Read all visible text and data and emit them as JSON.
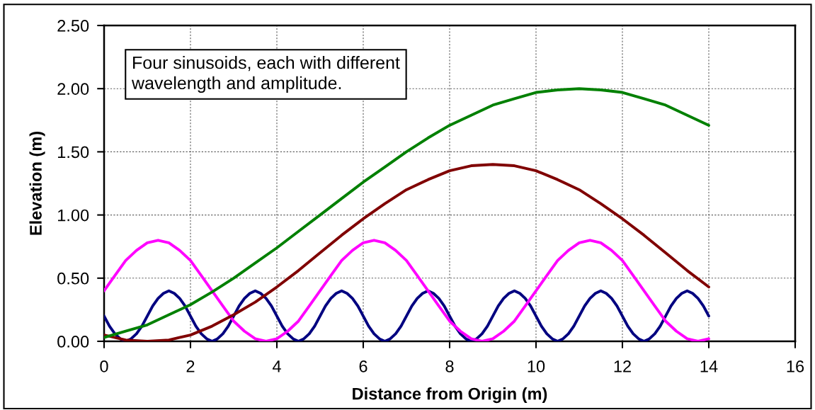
{
  "chart_data": {
    "type": "line",
    "xlabel": "Distance from Origin (m)",
    "ylabel": "Elevation (m)",
    "annotations": [
      "Four sinusoids, each with different\nwavelength and amplitude."
    ],
    "xlim": [
      0,
      16
    ],
    "ylim": [
      0,
      2.5
    ],
    "xticks": [
      0,
      2,
      4,
      6,
      8,
      10,
      12,
      14,
      16
    ],
    "yticks": [
      {
        "value": 0,
        "label": "0.00"
      },
      {
        "value": 0.5,
        "label": "0.50"
      },
      {
        "value": 1,
        "label": "1.00"
      },
      {
        "value": 1.5,
        "label": "1.50"
      },
      {
        "value": 2,
        "label": "2.00"
      },
      {
        "value": 2.5,
        "label": "2.50"
      }
    ],
    "grid": true,
    "line_style": "solid",
    "series": [
      {
        "color": "#000080",
        "x": [
          0,
          0.125,
          0.25,
          0.375,
          0.5,
          0.625,
          0.75,
          0.875,
          1,
          1.125,
          1.25,
          1.375,
          1.5,
          1.625,
          1.75,
          1.875,
          2,
          2.125,
          2.25,
          2.375,
          2.5,
          2.625,
          2.75,
          2.875,
          3,
          3.125,
          3.25,
          3.375,
          3.5,
          3.625,
          3.75,
          3.875,
          4,
          4.125,
          4.25,
          4.375,
          4.5,
          4.625,
          4.75,
          4.875,
          5,
          5.125,
          5.25,
          5.375,
          5.5,
          5.625,
          5.75,
          5.875,
          6,
          6.125,
          6.25,
          6.375,
          6.5,
          6.625,
          6.75,
          6.875,
          7,
          7.125,
          7.25,
          7.375,
          7.5,
          7.625,
          7.75,
          7.875,
          8,
          8.125,
          8.25,
          8.375,
          8.5,
          8.625,
          8.75,
          8.875,
          9,
          9.125,
          9.25,
          9.375,
          9.5,
          9.625,
          9.75,
          9.875,
          10,
          10.125,
          10.25,
          10.375,
          10.5,
          10.625,
          10.75,
          10.875,
          11,
          11.125,
          11.25,
          11.375,
          11.5,
          11.625,
          11.75,
          11.875,
          12,
          12.125,
          12.25,
          12.375,
          12.5,
          12.625,
          12.75,
          12.875,
          13,
          13.125,
          13.25,
          13.375,
          13.5,
          13.625,
          13.75,
          13.875,
          14
        ],
        "values": [
          0.2,
          0.12,
          0.06,
          0.02,
          0,
          0.02,
          0.06,
          0.12,
          0.2,
          0.28,
          0.34,
          0.38,
          0.4,
          0.38,
          0.34,
          0.28,
          0.2,
          0.12,
          0.06,
          0.02,
          0,
          0.02,
          0.06,
          0.12,
          0.2,
          0.28,
          0.34,
          0.38,
          0.4,
          0.38,
          0.34,
          0.28,
          0.2,
          0.12,
          0.06,
          0.02,
          0,
          0.02,
          0.06,
          0.12,
          0.2,
          0.28,
          0.34,
          0.38,
          0.4,
          0.38,
          0.34,
          0.28,
          0.2,
          0.12,
          0.06,
          0.02,
          0,
          0.02,
          0.06,
          0.12,
          0.2,
          0.28,
          0.34,
          0.38,
          0.4,
          0.38,
          0.34,
          0.28,
          0.2,
          0.12,
          0.06,
          0.02,
          0,
          0.02,
          0.06,
          0.12,
          0.2,
          0.28,
          0.34,
          0.38,
          0.4,
          0.38,
          0.34,
          0.28,
          0.2,
          0.12,
          0.06,
          0.02,
          0,
          0.02,
          0.06,
          0.12,
          0.2,
          0.28,
          0.34,
          0.38,
          0.4,
          0.38,
          0.34,
          0.28,
          0.2,
          0.12,
          0.06,
          0.02,
          0,
          0.02,
          0.06,
          0.12,
          0.2,
          0.28,
          0.34,
          0.38,
          0.4,
          0.38,
          0.34,
          0.28,
          0.2
        ]
      },
      {
        "color": "#ff00ff",
        "x": [
          0,
          0.25,
          0.5,
          0.75,
          1,
          1.25,
          1.5,
          1.75,
          2,
          2.25,
          2.5,
          2.75,
          3,
          3.25,
          3.5,
          3.75,
          4,
          4.25,
          4.5,
          4.75,
          5,
          5.25,
          5.5,
          5.75,
          6,
          6.25,
          6.5,
          6.75,
          7,
          7.25,
          7.5,
          7.75,
          8,
          8.25,
          8.5,
          8.75,
          9,
          9.25,
          9.5,
          9.75,
          10,
          10.25,
          10.5,
          10.75,
          11,
          11.25,
          11.5,
          11.75,
          12,
          12.25,
          12.5,
          12.75,
          13,
          13.25,
          13.5,
          13.75,
          14
        ],
        "values": [
          0.4,
          0.52,
          0.64,
          0.72,
          0.78,
          0.8,
          0.78,
          0.72,
          0.64,
          0.52,
          0.4,
          0.28,
          0.16,
          0.08,
          0.02,
          0,
          0.02,
          0.08,
          0.16,
          0.28,
          0.4,
          0.52,
          0.64,
          0.72,
          0.78,
          0.8,
          0.78,
          0.72,
          0.64,
          0.52,
          0.4,
          0.28,
          0.16,
          0.08,
          0.02,
          0,
          0.02,
          0.08,
          0.16,
          0.28,
          0.4,
          0.52,
          0.64,
          0.72,
          0.78,
          0.8,
          0.78,
          0.72,
          0.64,
          0.52,
          0.4,
          0.28,
          0.16,
          0.08,
          0.02,
          0,
          0.02
        ]
      },
      {
        "color": "#800000",
        "x": [
          0,
          0.5,
          1,
          1.5,
          2,
          2.5,
          3,
          3.5,
          4,
          4.5,
          5,
          5.5,
          6,
          6.5,
          7,
          7.5,
          8,
          8.5,
          9,
          9.5,
          10,
          10.5,
          11,
          11.5,
          12,
          12.5,
          13,
          13.5,
          14
        ],
        "values": [
          0.05,
          0.01,
          0,
          0.01,
          0.05,
          0.12,
          0.21,
          0.31,
          0.43,
          0.56,
          0.7,
          0.84,
          0.97,
          1.09,
          1.2,
          1.28,
          1.35,
          1.39,
          1.4,
          1.39,
          1.35,
          1.28,
          1.2,
          1.09,
          0.97,
          0.84,
          0.7,
          0.56,
          0.43
        ]
      },
      {
        "color": "#008000",
        "x": [
          0,
          0.5,
          1,
          1.5,
          2,
          2.5,
          3,
          3.5,
          4,
          4.5,
          5,
          5.5,
          6,
          6.5,
          7,
          7.5,
          8,
          8.5,
          9,
          9.5,
          10,
          10.5,
          11,
          11.5,
          12,
          12.5,
          13,
          13.5,
          14
        ],
        "values": [
          0.03,
          0.08,
          0.13,
          0.21,
          0.29,
          0.39,
          0.5,
          0.62,
          0.74,
          0.87,
          1,
          1.13,
          1.26,
          1.38,
          1.5,
          1.61,
          1.71,
          1.79,
          1.87,
          1.92,
          1.97,
          1.99,
          2,
          1.99,
          1.97,
          1.92,
          1.87,
          1.79,
          1.71
        ]
      }
    ]
  }
}
